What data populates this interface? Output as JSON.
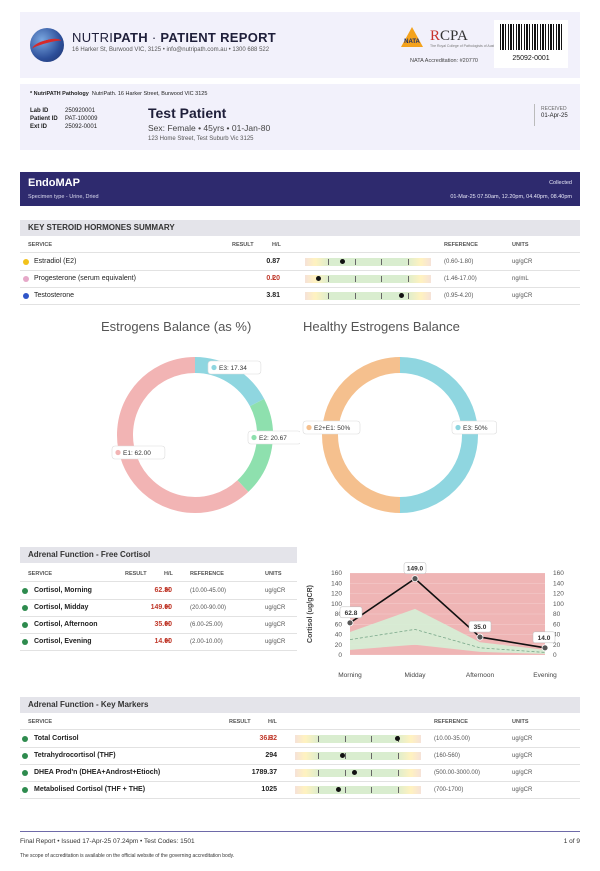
{
  "header": {
    "brand_light": "NUTRI",
    "brand_bold": "PATH",
    "brand_sep": "·",
    "report_title": "PATIENT REPORT",
    "address": "16 Harker St, Burwood VIC, 3125  •  info@nutripath.com.au  •  1300 688 522",
    "nata_label": "NATA",
    "rcpa_r": "R",
    "rcpa_rest": "CPA",
    "rcpa_sub": "The Royal College of Pathologists of Australasia",
    "accreditation": "NATA Accreditation: #20770",
    "barcode_number": "25092-0001"
  },
  "patient": {
    "lab_name": "* NutriPATH Pathology",
    "lab_address": "NutriPath. 16 Harker Street, Burwood VIC 3125",
    "lab_id_label": "Lab ID",
    "lab_id": "250920001",
    "patient_id_label": "Patient ID",
    "patient_id": "PAT-100009",
    "ext_id_label": "Ext ID",
    "ext_id": "25092-0001",
    "name": "Test Patient",
    "info": "Sex: Female  •  45yrs  •  01-Jan-80",
    "address": "123 Home Street, Test Suburb Vic 3125",
    "received_label": "RECEIVED",
    "received_date": "01-Apr-25"
  },
  "test": {
    "name": "EndoMAP",
    "specimen": "Specimen type - Urine, Dried",
    "collected_label": "Collected",
    "collected_dates": "01-Mar-25 07.50am, 12.20pm, 04.40pm, 08.40pm"
  },
  "steroid": {
    "title": "KEY STEROID HORMONES SUMMARY",
    "cols": {
      "service": "SERVICE",
      "result": "RESULT",
      "hl": "H/L",
      "reference": "REFERENCE",
      "units": "UNITS"
    },
    "rows": [
      {
        "color": "#f2c21b",
        "name": "Estradiol (E2)",
        "result": "0.87",
        "flag": "",
        "reference": "(0.60-1.80)",
        "units": "ug/gCR",
        "pos": 0.29
      },
      {
        "color": "#e6a8c8",
        "name": "Progesterone (serum equivalent)",
        "result": "0.20",
        "flag": "L",
        "reference": "(1.46-17.00)",
        "units": "ng/mL",
        "pos": 0.1
      },
      {
        "color": "#2f55c8",
        "name": "Testosterone",
        "result": "3.81",
        "flag": "",
        "reference": "(0.95-4.20)",
        "units": "ug/gCR",
        "pos": 0.76
      }
    ]
  },
  "estrogens": {
    "title": "Estrogens Balance (as %)",
    "segments": [
      {
        "label": "E3",
        "value": 17.34,
        "color": "#8fd6e0"
      },
      {
        "label": "E2",
        "value": 20.67,
        "color": "#8ee0ae"
      },
      {
        "label": "E1",
        "value": 62.0,
        "color": "#f2b4b4"
      }
    ],
    "labels": [
      "E3: 17.34",
      "E2: 20.67",
      "E1: 62.00"
    ]
  },
  "healthy": {
    "title": "Healthy Estrogens Balance",
    "segments": [
      {
        "label": "E3",
        "value": 50,
        "color": "#8fd6e0"
      },
      {
        "label": "E2+E1",
        "value": 50,
        "color": "#f5c08e"
      }
    ],
    "labels": [
      "E2+E1: 50%",
      "E3: 50%"
    ]
  },
  "cortisol": {
    "title": "Adrenal Function - Free Cortisol",
    "cols": {
      "service": "SERVICE",
      "result": "RESULT",
      "hl": "H/L",
      "reference": "REFERENCE",
      "units": "UNITS"
    },
    "rows": [
      {
        "name": "Cortisol, Morning",
        "result": "62.80",
        "flag": "H",
        "reference": "(10.00-45.00)",
        "units": "ug/gCR"
      },
      {
        "name": "Cortisol, Midday",
        "result": "149.00",
        "flag": "H",
        "reference": "(20.00-90.00)",
        "units": "ug/gCR"
      },
      {
        "name": "Cortisol, Afternoon",
        "result": "35.00",
        "flag": "H",
        "reference": "(6.00-25.00)",
        "units": "ug/gCR"
      },
      {
        "name": "Cortisol, Evening",
        "result": "14.00",
        "flag": "H",
        "reference": "(2.00-10.00)",
        "units": "ug/gCR"
      }
    ]
  },
  "chart_data": {
    "type": "line",
    "categories": [
      "Morning",
      "Midday",
      "Afternoon",
      "Evening"
    ],
    "values": [
      62.8,
      149.0,
      35.0,
      14.0
    ],
    "value_labels": [
      "62.8",
      "149.0",
      "35.0",
      "14.0"
    ],
    "ref_low": [
      10,
      20,
      6,
      2
    ],
    "ref_high": [
      45,
      90,
      25,
      10
    ],
    "ref_mid": [
      30,
      50,
      14,
      5
    ],
    "ylabel": "Cortisol (ug/gCR)",
    "ylim": [
      0,
      160
    ],
    "yticks": [
      "0",
      "20",
      "40",
      "60",
      "80",
      "100",
      "120",
      "140",
      "160"
    ],
    "colors": {
      "background": "#efb5b5",
      "band": "#d5efd6",
      "line": "#111111"
    }
  },
  "markers": {
    "title": "Adrenal Function - Key Markers",
    "cols": {
      "service": "SERVICE",
      "result": "RESULT",
      "hl": "H/L",
      "reference": "REFERENCE",
      "units": "UNITS"
    },
    "rows": [
      {
        "name": "Total Cortisol",
        "result": "36.32",
        "flag": "H",
        "reference": "(10.00-35.00)",
        "units": "ug/gCR",
        "pos": 0.81
      },
      {
        "name": "Tetrahydrocortisol (THF)",
        "result": "294",
        "flag": "",
        "reference": "(160-560)",
        "units": "ug/gCR",
        "pos": 0.37
      },
      {
        "name": "DHEA Prod'n (DHEA+Androst+Etioch)",
        "result": "1789.37",
        "flag": "",
        "reference": "(500.00-3000.00)",
        "units": "ug/gCR",
        "pos": 0.47
      },
      {
        "name": "Metabolised Cortisol (THF + THE)",
        "result": "1025",
        "flag": "",
        "reference": "(700-1700)",
        "units": "ug/gCR",
        "pos": 0.34
      }
    ]
  },
  "footer": {
    "status": "Final Report  •  Issued 17-Apr-25 07.24pm  •  Test Codes: 1501",
    "page": "1 of 9",
    "note": "The scope of accreditation is available on the official website of the governing accreditation body."
  }
}
